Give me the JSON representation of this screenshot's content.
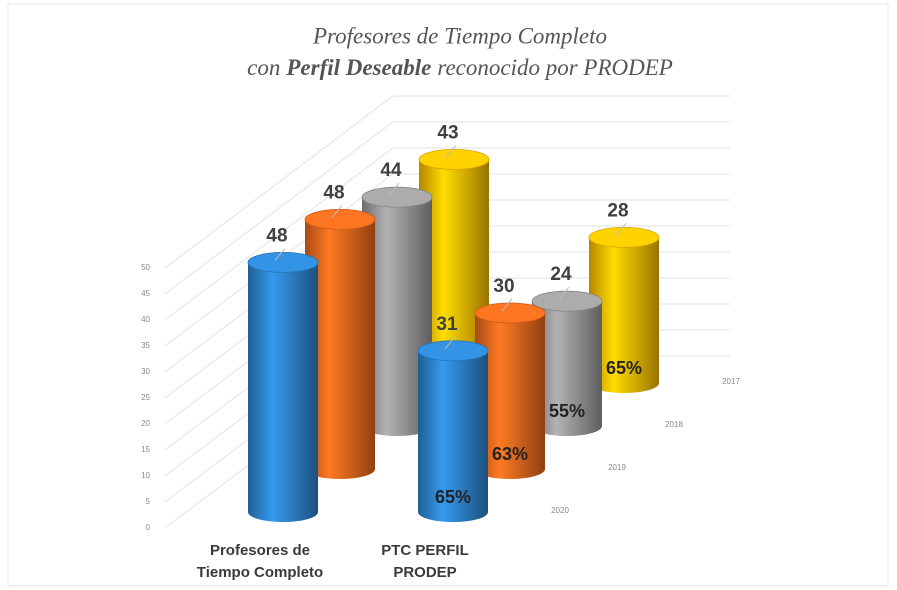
{
  "chart_data": {
    "type": "cylinder3d",
    "title": {
      "line1": "Profesores de Tiempo Completo",
      "line2": [
        "con",
        "Perfil Deseable",
        "reconocido por PRODEP"
      ]
    },
    "categories": [
      "Profesores de Tiempo Completo",
      "PTC PERFIL PRODEP"
    ],
    "series": [
      {
        "name": "2020",
        "color": "#2e86d0",
        "values": [
          48,
          31
        ]
      },
      {
        "name": "2019",
        "color": "#f06a1e",
        "values": [
          48,
          30
        ]
      },
      {
        "name": "2018",
        "color": "#9c9c9c",
        "values": [
          44,
          24
        ]
      },
      {
        "name": "2017",
        "color": "#ffc000",
        "values": [
          43,
          28
        ]
      }
    ],
    "annotations": [
      "65%",
      "63%",
      "55%",
      "65%"
    ],
    "ylim": [
      0,
      50
    ],
    "yticks": [
      0,
      5,
      10,
      15,
      20,
      25,
      30,
      35,
      40,
      45,
      50
    ],
    "grid": true
  }
}
